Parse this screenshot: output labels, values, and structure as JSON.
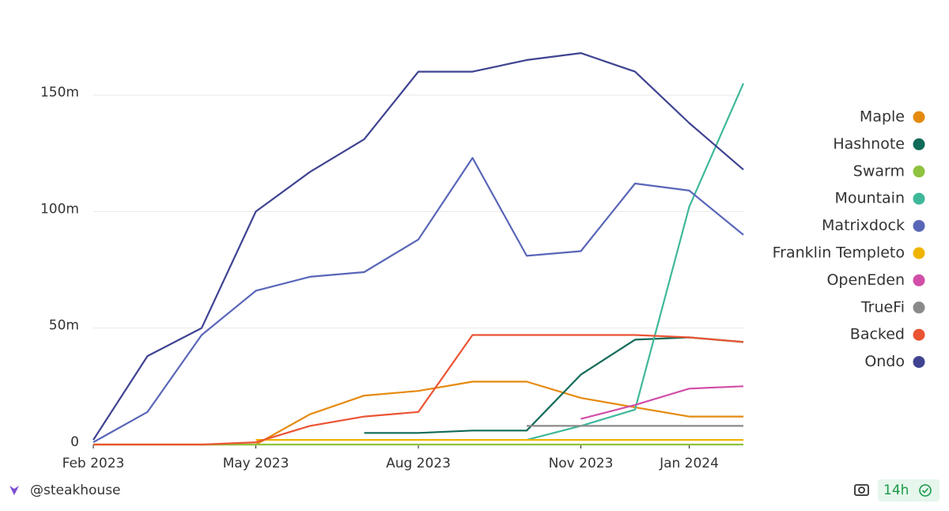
{
  "chart_data": {
    "type": "line",
    "x": [
      "2023-02",
      "2023-03",
      "2023-04",
      "2023-05",
      "2023-06",
      "2023-07",
      "2023-08",
      "2023-09",
      "2023-10",
      "2023-11",
      "2023-12",
      "2024-01",
      "2024-02"
    ],
    "xlim": [
      "2023-02",
      "2024-02"
    ],
    "xticks": [
      {
        "value": "2023-02",
        "label": "Feb 2023"
      },
      {
        "value": "2023-05",
        "label": "May 2023"
      },
      {
        "value": "2023-08",
        "label": "Aug 2023"
      },
      {
        "value": "2023-11",
        "label": "Nov 2023"
      },
      {
        "value": "2024-01",
        "label": "Jan 2024"
      }
    ],
    "ylim": [
      0,
      180
    ],
    "yticks": [
      0,
      {
        "value": 50,
        "label": "50m"
      },
      {
        "value": 100,
        "label": "100m"
      },
      {
        "value": 150,
        "label": "150m"
      }
    ],
    "grid": true,
    "legend": "right",
    "series": [
      {
        "name": "Maple",
        "color": "#e58a0f",
        "values": [
          0,
          0,
          0,
          0,
          13,
          21,
          23,
          27,
          27,
          20,
          16,
          12,
          12
        ]
      },
      {
        "name": "Hashnote",
        "color": "#116b58",
        "values": [
          null,
          null,
          null,
          null,
          null,
          5,
          5,
          6,
          6,
          30,
          45,
          46,
          44
        ]
      },
      {
        "name": "Swarm",
        "color": "#8fc23f",
        "values": [
          0,
          0,
          0,
          0,
          0,
          0,
          0,
          0,
          0,
          0,
          0,
          0,
          0
        ]
      },
      {
        "name": "Mountain",
        "color": "#3fb89a",
        "values": [
          null,
          null,
          null,
          null,
          null,
          null,
          null,
          null,
          2,
          8,
          15,
          102,
          155
        ]
      },
      {
        "name": "Matrixdock",
        "color": "#5966b8",
        "values": [
          1,
          14,
          47,
          66,
          72,
          74,
          88,
          123,
          81,
          83,
          112,
          109,
          90
        ]
      },
      {
        "name": "Franklin Templeto",
        "color": "#f0b400",
        "values": [
          null,
          null,
          null,
          2,
          2,
          2,
          2,
          2,
          2,
          2,
          2,
          2,
          2
        ]
      },
      {
        "name": "OpenEden",
        "color": "#d24ea8",
        "values": [
          null,
          null,
          null,
          null,
          null,
          null,
          null,
          null,
          null,
          11,
          17,
          24,
          25
        ]
      },
      {
        "name": "TrueFi",
        "color": "#8a8a8a",
        "values": [
          null,
          null,
          null,
          null,
          null,
          null,
          null,
          null,
          8,
          8,
          8,
          8,
          8
        ]
      },
      {
        "name": "Backed",
        "color": "#ea5433",
        "values": [
          0,
          0,
          0,
          1,
          8,
          12,
          14,
          47,
          47,
          47,
          47,
          46,
          44
        ]
      },
      {
        "name": "Ondo",
        "color": "#3f4391",
        "values": [
          2,
          38,
          50,
          100,
          117,
          131,
          160,
          160,
          165,
          168,
          160,
          138,
          118
        ]
      }
    ]
  },
  "footer": {
    "handle": "@steakhouse",
    "badge": "14h"
  }
}
